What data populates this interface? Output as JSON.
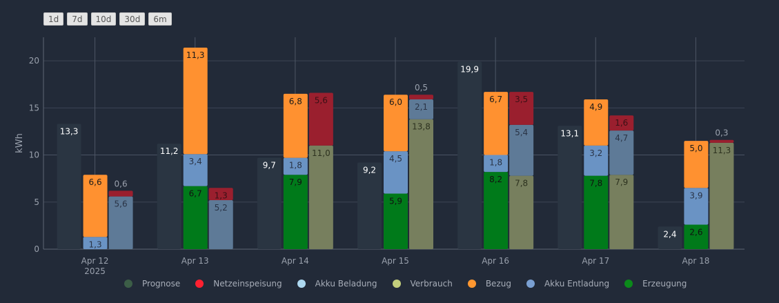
{
  "range_buttons": [
    "1d",
    "7d",
    "10d",
    "30d",
    "6m"
  ],
  "colors": {
    "background": "#222a38",
    "prognose": "#2a3542",
    "erzeugung": "#007a1a",
    "akku_beladung": "#6a93c4",
    "bezug": "#ff9130",
    "netzeinspeisung": "#9a1f2e",
    "akku_entladung": "#5e7a97",
    "verbrauch": "#777f5e"
  },
  "legend": [
    {
      "label": "Prognose",
      "color": "#3c5e47"
    },
    {
      "label": "Netzeinspeisung",
      "color": "#ff2030"
    },
    {
      "label": "Akku Beladung",
      "color": "#add8f0"
    },
    {
      "label": "Verbrauch",
      "color": "#c3ce7c"
    },
    {
      "label": "Bezug",
      "color": "#ff9730"
    },
    {
      "label": "Akku Entladung",
      "color": "#7aa0d2"
    },
    {
      "label": "Erzeugung",
      "color": "#0b8a1a"
    }
  ],
  "chart_data": {
    "type": "bar",
    "ylabel": "kWh",
    "ylim": [
      0,
      22.5
    ],
    "yticks": [
      "0",
      "5",
      "10",
      "15",
      "20"
    ],
    "categories": [
      "Apr 12",
      "Apr 13",
      "Apr 14",
      "Apr 15",
      "Apr 16",
      "Apr 17",
      "Apr 18"
    ],
    "year_label": "2025",
    "series": [
      {
        "name": "Prognose",
        "values": [
          13.3,
          11.2,
          9.7,
          9.2,
          19.9,
          13.1,
          2.4
        ]
      },
      {
        "name": "Erzeugung",
        "values": [
          0,
          6.7,
          7.9,
          5.9,
          8.2,
          7.8,
          2.6
        ]
      },
      {
        "name": "Akku Beladung",
        "values": [
          1.3,
          3.4,
          1.8,
          4.5,
          1.8,
          3.2,
          3.9
        ]
      },
      {
        "name": "Bezug",
        "values": [
          6.6,
          11.3,
          6.8,
          6.0,
          6.7,
          4.9,
          5.0
        ]
      },
      {
        "name": "Verbrauch",
        "values": [
          0,
          0,
          11.0,
          13.8,
          7.8,
          7.9,
          11.3
        ]
      },
      {
        "name": "Akku Entladung",
        "values": [
          5.6,
          5.2,
          0,
          2.1,
          5.4,
          4.7,
          0
        ]
      },
      {
        "name": "Netzeinspeisung",
        "values": [
          0.6,
          1.3,
          5.6,
          0.5,
          3.5,
          1.6,
          0.3
        ]
      }
    ],
    "labels": {
      "Prognose": [
        "13,3",
        "11,2",
        "9,7",
        "9,2",
        "19,9",
        "13,1",
        "2,4"
      ],
      "Erzeugung": [
        "",
        "6,7",
        "7,9",
        "5,9",
        "8,2",
        "7,8",
        "2,6"
      ],
      "Akku Beladung": [
        "1,3",
        "3,4",
        "1,8",
        "4,5",
        "1,8",
        "3,2",
        "3,9"
      ],
      "Bezug": [
        "6,6",
        "11,3",
        "6,8",
        "6,0",
        "6,7",
        "4,9",
        "5,0"
      ],
      "Verbrauch": [
        "",
        "",
        "11,0",
        "13,8",
        "7,8",
        "7,9",
        "11,3"
      ],
      "Akku Entladung": [
        "5,6",
        "5,2",
        "",
        "2,1",
        "5,4",
        "4,7",
        ""
      ],
      "Netzeinspeisung": [
        "0,6",
        "1,3",
        "5,6",
        "0,5",
        "3,5",
        "1,6",
        "0,3"
      ]
    }
  }
}
